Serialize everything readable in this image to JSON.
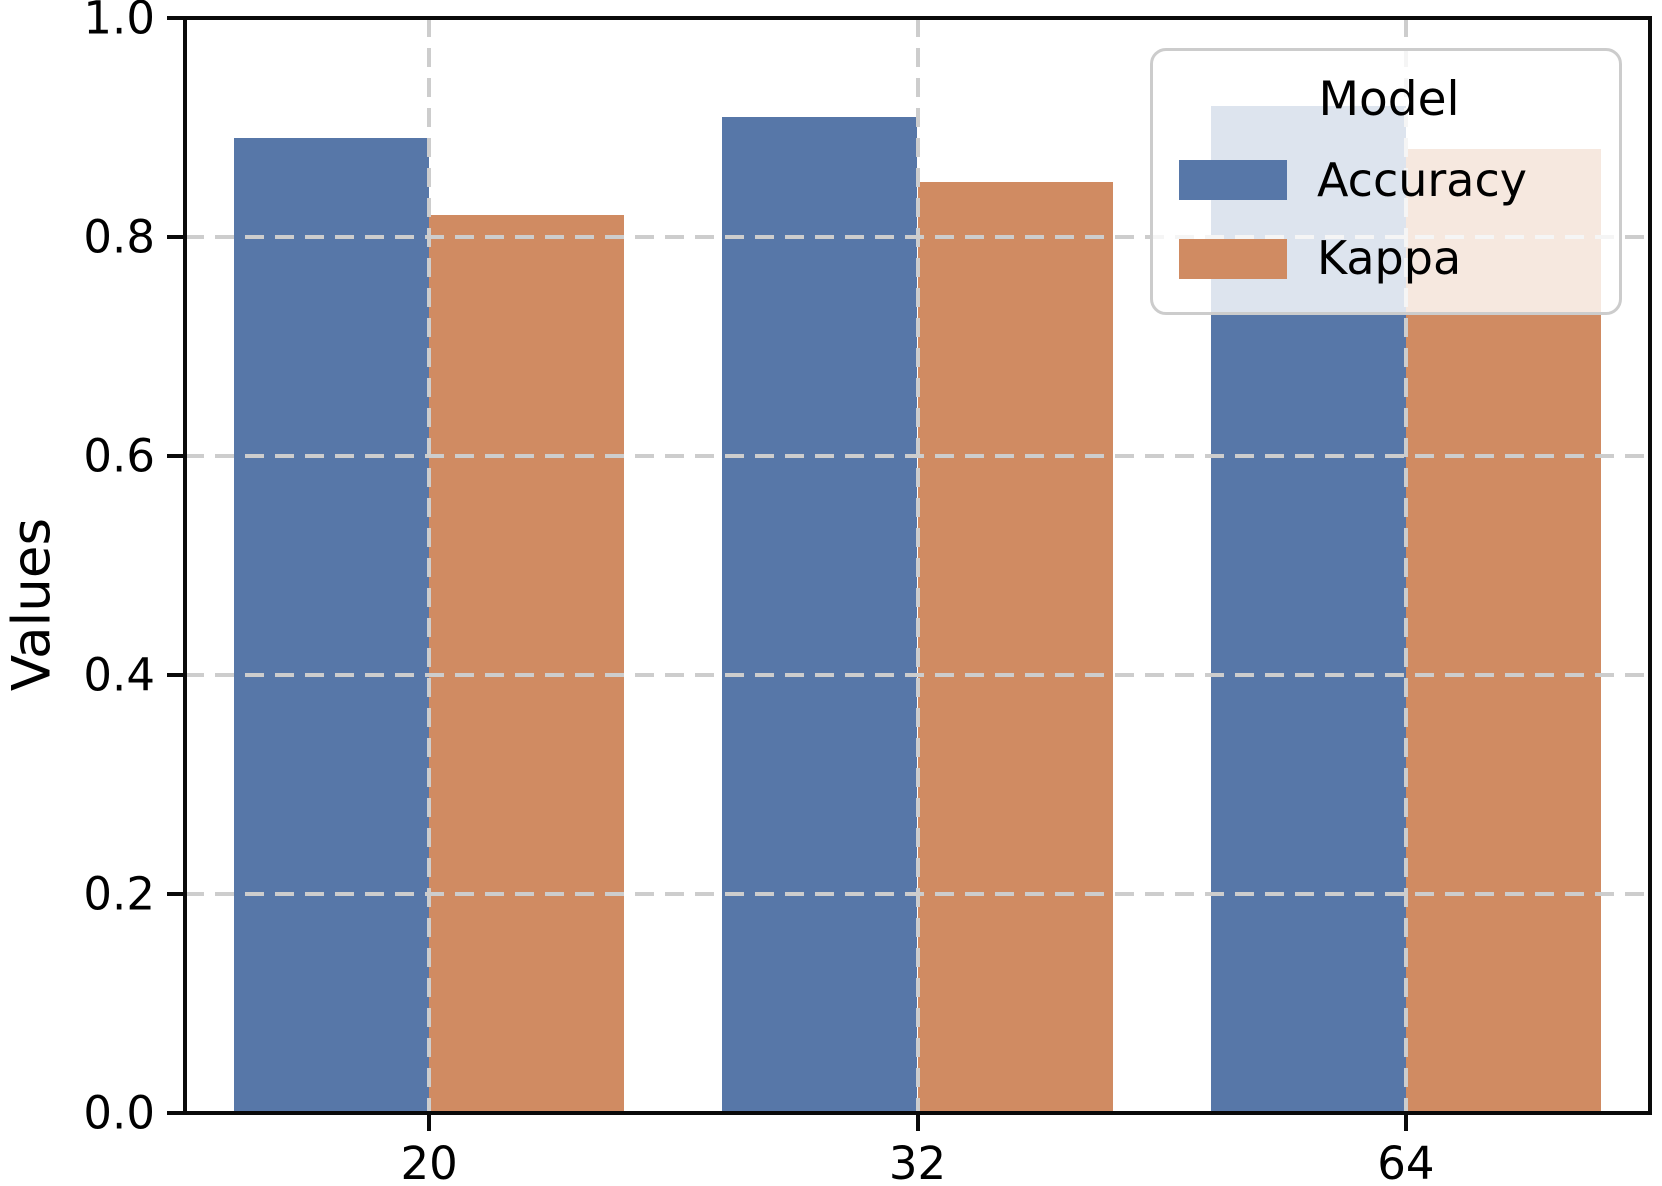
{
  "chart_data": {
    "type": "bar",
    "title": "",
    "categories": [
      "20",
      "32",
      "64"
    ],
    "series": [
      {
        "name": "Accuracy",
        "color": "#5777A8",
        "values": [
          0.89,
          0.91,
          0.92
        ]
      },
      {
        "name": "Kappa",
        "color": "#D08B62",
        "values": [
          0.82,
          0.85,
          0.88
        ]
      }
    ],
    "xlabel": "",
    "ylabel": "Values",
    "ylim": [
      0.0,
      1.0
    ],
    "yticks": [
      "0.0",
      "0.2",
      "0.4",
      "0.6",
      "0.8",
      "1.0"
    ],
    "grid": "dashed, gray, drawn above bars, horizontal at yticks and vertical at group centers",
    "legend": {
      "title": "Model",
      "position": "upper right",
      "entries": [
        "Accuracy",
        "Kappa"
      ]
    },
    "colors": {
      "accuracy": "#5777A8",
      "kappa": "#D08B62",
      "grid": "#cdcdcd",
      "spine": "#0a0a0a",
      "legend_border": "#cccccc"
    }
  }
}
